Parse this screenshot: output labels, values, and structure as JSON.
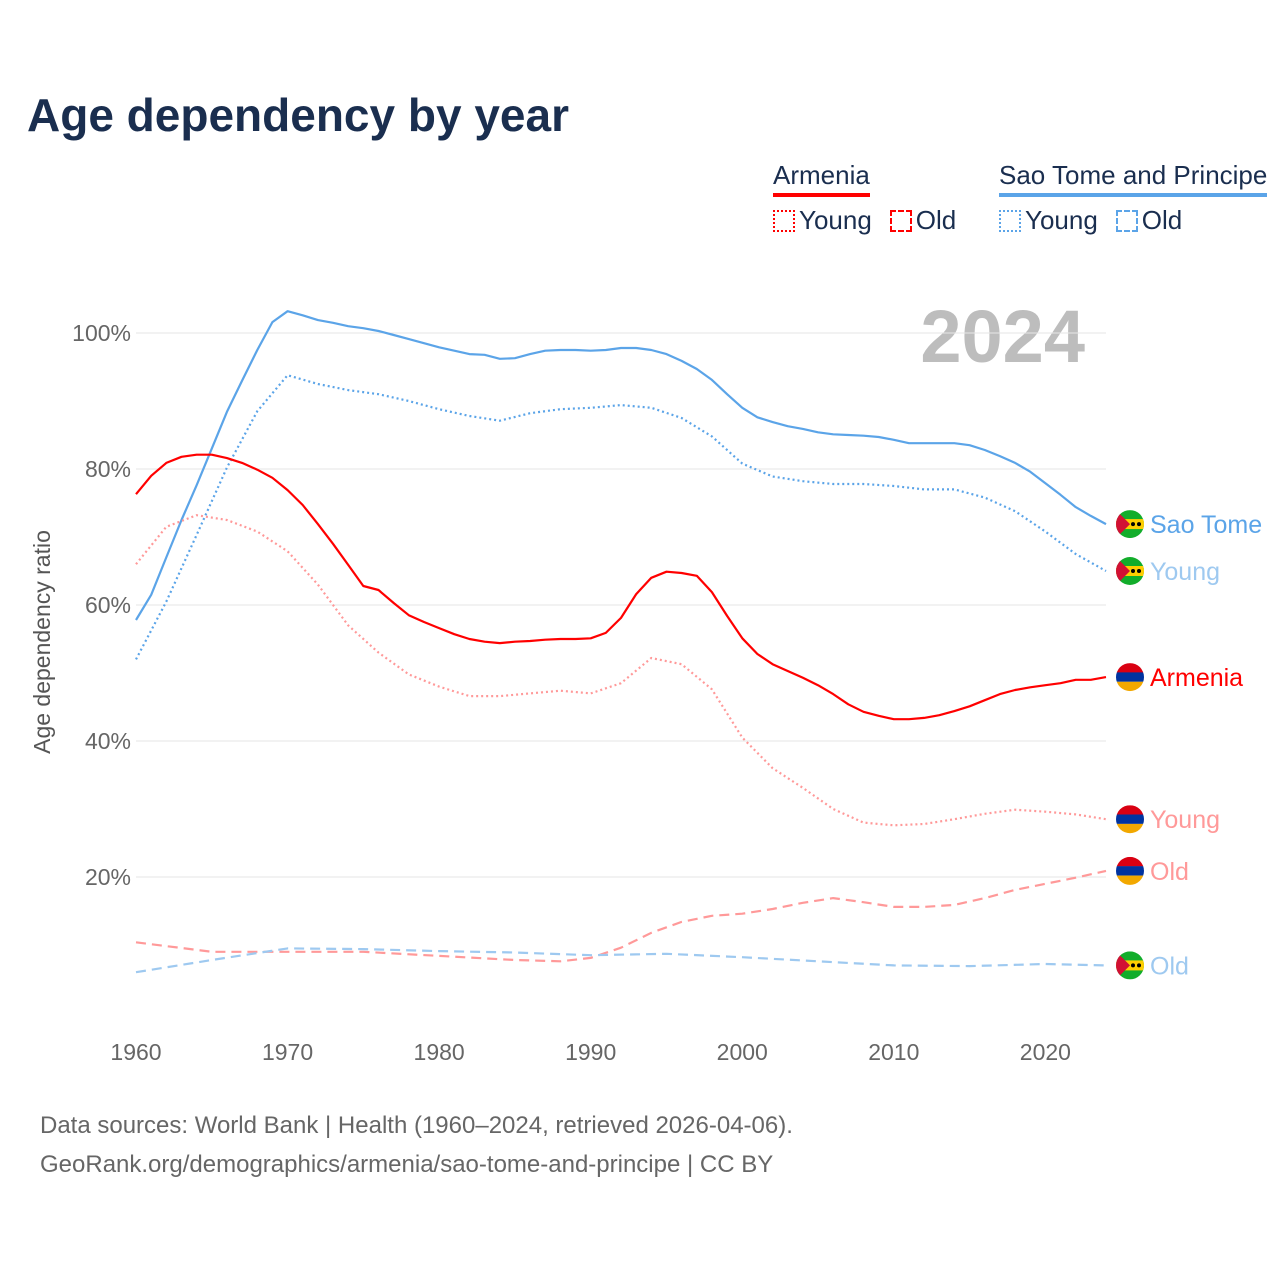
{
  "title": "Age dependency by year",
  "legend": {
    "groups": [
      {
        "name": "Armenia",
        "color": "#ff0000",
        "light": "#ff9999",
        "young_label": "Young",
        "old_label": "Old"
      },
      {
        "name": "Sao Tome and Principe",
        "color": "#5ba4e8",
        "light": "#9ec9f0",
        "young_label": "Young",
        "old_label": "Old"
      }
    ]
  },
  "year_badge": "2024",
  "footer": {
    "line1": "Data sources: World Bank | Health (1960–2024, retrieved 2026-04-06).",
    "line2": "GeoRank.org/demographics/armenia/sao-tome-and-principe | CC BY"
  },
  "chart_data": {
    "type": "line",
    "title": "Age dependency by year",
    "xlabel": "",
    "ylabel": "Age dependency ratio",
    "xlim": [
      1960,
      2024
    ],
    "ylim": [
      0,
      105
    ],
    "x_ticks": [
      "1960",
      "1970",
      "1980",
      "1990",
      "2000",
      "2010",
      "2020"
    ],
    "y_ticks": [
      "20%",
      "40%",
      "60%",
      "80%",
      "100%"
    ],
    "grid": true,
    "series": [
      {
        "name": "Sao Tome and Principe",
        "end_label": "Sao Tome",
        "kind": "total",
        "color": "#5ba4e8",
        "label_color": "#5ba4e8",
        "flag": "sao-tome",
        "years": [
          1960,
          1961,
          1962,
          1963,
          1964,
          1965,
          1966,
          1967,
          1968,
          1969,
          1970,
          1971,
          1972,
          1973,
          1974,
          1975,
          1976,
          1977,
          1978,
          1979,
          1980,
          1981,
          1982,
          1983,
          1984,
          1985,
          1986,
          1987,
          1988,
          1989,
          1990,
          1991,
          1992,
          1993,
          1994,
          1995,
          1996,
          1997,
          1998,
          1999,
          2000,
          2001,
          2002,
          2003,
          2004,
          2005,
          2006,
          2007,
          2008,
          2009,
          2010,
          2011,
          2012,
          2013,
          2014,
          2015,
          2016,
          2017,
          2018,
          2019,
          2020,
          2021,
          2022,
          2023,
          2024
        ],
        "values": [
          57.8,
          61.5,
          67,
          72.5,
          77.6,
          83,
          88.4,
          93,
          97.5,
          101.6,
          103.2,
          102.6,
          101.9,
          101.5,
          101,
          100.7,
          100.3,
          99.7,
          99.1,
          98.5,
          97.9,
          97.4,
          96.9,
          96.8,
          96.2,
          96.3,
          96.9,
          97.4,
          97.5,
          97.5,
          97.4,
          97.5,
          97.8,
          97.8,
          97.5,
          96.9,
          95.9,
          94.7,
          93.1,
          91,
          89,
          87.6,
          86.9,
          86.3,
          85.9,
          85.4,
          85.1,
          85,
          84.9,
          84.7,
          84.3,
          83.8,
          83.8,
          83.8,
          83.8,
          83.5,
          82.8,
          81.9,
          80.9,
          79.6,
          77.9,
          76.2,
          74.4,
          73.1,
          71.9
        ]
      },
      {
        "name": "Sao Tome and Principe Young",
        "end_label": "Young",
        "kind": "young",
        "color": "#5ba4e8",
        "label_color": "#9ec9f0",
        "flag": "sao-tome",
        "years": [
          1960,
          1962,
          1964,
          1966,
          1968,
          1970,
          1972,
          1974,
          1976,
          1978,
          1980,
          1982,
          1984,
          1986,
          1988,
          1990,
          1992,
          1994,
          1996,
          1998,
          2000,
          2002,
          2004,
          2006,
          2008,
          2010,
          2012,
          2014,
          2016,
          2018,
          2020,
          2022,
          2024
        ],
        "values": [
          52,
          60.5,
          70.3,
          80.2,
          88.5,
          93.8,
          92.5,
          91.6,
          91,
          90,
          88.8,
          87.8,
          87.1,
          88.2,
          88.8,
          89,
          89.4,
          89,
          87.5,
          84.8,
          80.8,
          78.9,
          78.2,
          77.8,
          77.8,
          77.5,
          77,
          77,
          75.8,
          73.8,
          70.8,
          67.5,
          65
        ]
      },
      {
        "name": "Armenia",
        "end_label": "Armenia",
        "kind": "total",
        "color": "#ff0000",
        "label_color": "#ff0000",
        "flag": "armenia",
        "years": [
          1960,
          1961,
          1962,
          1963,
          1964,
          1965,
          1966,
          1967,
          1968,
          1969,
          1970,
          1971,
          1972,
          1973,
          1974,
          1975,
          1976,
          1977,
          1978,
          1979,
          1980,
          1981,
          1982,
          1983,
          1984,
          1985,
          1986,
          1987,
          1988,
          1989,
          1990,
          1991,
          1992,
          1993,
          1994,
          1995,
          1996,
          1997,
          1998,
          1999,
          2000,
          2001,
          2002,
          2003,
          2004,
          2005,
          2006,
          2007,
          2008,
          2009,
          2010,
          2011,
          2012,
          2013,
          2014,
          2015,
          2016,
          2017,
          2018,
          2019,
          2020,
          2021,
          2022,
          2023,
          2024
        ],
        "values": [
          76.3,
          79,
          80.9,
          81.8,
          82.1,
          82.1,
          81.6,
          80.9,
          79.9,
          78.7,
          76.9,
          74.7,
          71.9,
          69,
          65.9,
          62.8,
          62.2,
          60.3,
          58.5,
          57.5,
          56.6,
          55.7,
          55,
          54.6,
          54.4,
          54.6,
          54.7,
          54.9,
          55,
          55,
          55.1,
          55.9,
          58.1,
          61.6,
          64,
          64.9,
          64.7,
          64.3,
          61.9,
          58.4,
          55.1,
          52.8,
          51.3,
          50.3,
          49.3,
          48.2,
          46.9,
          45.4,
          44.3,
          43.7,
          43.2,
          43.2,
          43.4,
          43.8,
          44.4,
          45.1,
          46,
          46.9,
          47.5,
          47.9,
          48.2,
          48.5,
          49,
          49,
          49.4
        ]
      },
      {
        "name": "Armenia Young",
        "end_label": "Young",
        "kind": "young",
        "color": "#ff9999",
        "label_color": "#ff9999",
        "flag": "armenia",
        "years": [
          1960,
          1962,
          1964,
          1966,
          1968,
          1970,
          1972,
          1974,
          1976,
          1978,
          1980,
          1982,
          1984,
          1986,
          1988,
          1990,
          1992,
          1994,
          1996,
          1998,
          2000,
          2002,
          2004,
          2006,
          2008,
          2010,
          2012,
          2014,
          2016,
          2018,
          2020,
          2022,
          2024
        ],
        "values": [
          66,
          71.5,
          73.2,
          72.5,
          70.8,
          67.9,
          63,
          57,
          53,
          49.8,
          48,
          46.6,
          46.6,
          47,
          47.4,
          47,
          48.5,
          52.2,
          51.3,
          47.6,
          40.5,
          36,
          33.1,
          30,
          28,
          27.6,
          27.8,
          28.5,
          29.3,
          29.9,
          29.6,
          29.2,
          28.5
        ]
      },
      {
        "name": "Armenia Old",
        "end_label": "Old",
        "kind": "old",
        "color": "#ff9999",
        "label_color": "#ff9999",
        "flag": "armenia",
        "years": [
          1960,
          1965,
          1970,
          1975,
          1980,
          1985,
          1988,
          1990,
          1992,
          1994,
          1996,
          1998,
          2000,
          2002,
          2004,
          2006,
          2008,
          2010,
          2012,
          2014,
          2016,
          2018,
          2020,
          2022,
          2024
        ],
        "values": [
          10.4,
          9,
          9,
          9,
          8.4,
          7.8,
          7.6,
          8.1,
          9.6,
          11.8,
          13.4,
          14.3,
          14.6,
          15.3,
          16.2,
          16.9,
          16.3,
          15.6,
          15.6,
          15.9,
          16.9,
          18.1,
          19,
          19.9,
          20.9
        ]
      },
      {
        "name": "Sao Tome and Principe Old",
        "end_label": "Old",
        "kind": "old",
        "color": "#9ec9f0",
        "label_color": "#9ec9f0",
        "flag": "sao-tome",
        "years": [
          1960,
          1965,
          1970,
          1975,
          1980,
          1985,
          1990,
          1995,
          2000,
          2005,
          2010,
          2015,
          2020,
          2024
        ],
        "values": [
          6,
          7.8,
          9.5,
          9.4,
          9.1,
          8.9,
          8.5,
          8.7,
          8.2,
          7.6,
          7,
          6.9,
          7.2,
          7
        ]
      }
    ]
  }
}
